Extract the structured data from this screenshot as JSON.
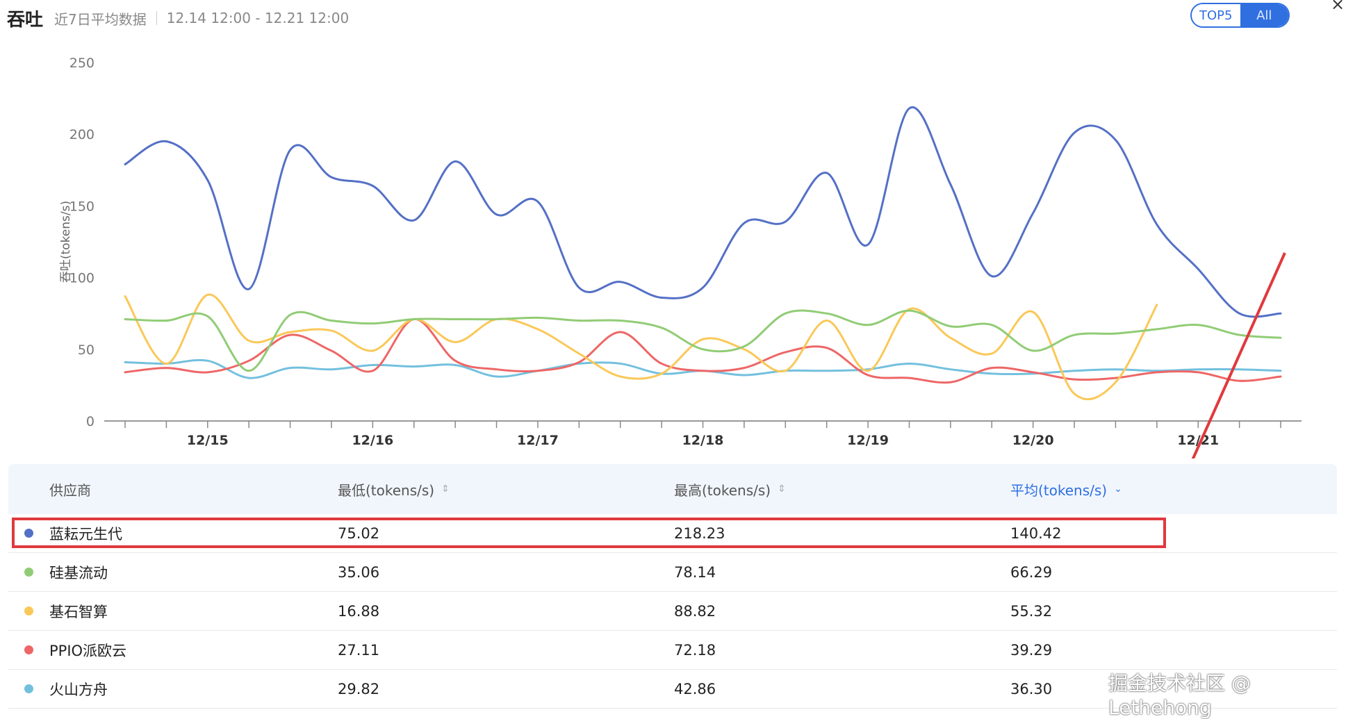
{
  "header": {
    "title": "吞吐",
    "subtitle": "近7日平均数据",
    "range": "12.14 12:00 - 12.21 12:00"
  },
  "toggle": {
    "top5": "TOP5",
    "all": "All"
  },
  "close_icon": "close-icon",
  "chart_data": {
    "type": "line",
    "ylabel": "吞吐(tokens/s)",
    "ylim": [
      0,
      250
    ],
    "yticks": [
      "0",
      "50",
      "100",
      "150",
      "200",
      "250"
    ],
    "xticks": [
      "12/15",
      "12/16",
      "12/17",
      "12/18",
      "12/19",
      "12/20",
      "12/21"
    ],
    "xlim": [
      0,
      28
    ],
    "x_tick_positions": [
      2,
      6,
      10,
      14,
      18,
      22,
      26
    ],
    "series": [
      {
        "name": "蓝耘元生代",
        "color": "#5470c6",
        "points": [
          [
            0,
            179
          ],
          [
            1,
            195
          ],
          [
            2,
            168
          ],
          [
            3,
            92
          ],
          [
            4,
            189
          ],
          [
            5,
            170
          ],
          [
            6,
            164
          ],
          [
            7,
            140
          ],
          [
            8,
            181
          ],
          [
            9,
            144
          ],
          [
            10,
            153
          ],
          [
            11,
            93
          ],
          [
            12,
            97
          ],
          [
            13,
            86
          ],
          [
            14,
            93
          ],
          [
            15,
            138
          ],
          [
            16,
            139
          ],
          [
            17,
            173
          ],
          [
            18,
            123
          ],
          [
            19,
            218
          ],
          [
            20,
            165
          ],
          [
            21,
            101
          ],
          [
            22,
            145
          ],
          [
            23,
            201
          ],
          [
            24,
            196
          ],
          [
            25,
            137
          ],
          [
            26,
            106
          ],
          [
            27,
            75
          ],
          [
            28,
            75
          ]
        ]
      },
      {
        "name": "硅基流动",
        "color": "#91cc75",
        "points": [
          [
            0,
            71
          ],
          [
            1,
            70
          ],
          [
            2,
            73
          ],
          [
            3,
            35
          ],
          [
            4,
            74
          ],
          [
            5,
            70
          ],
          [
            6,
            68
          ],
          [
            7,
            71
          ],
          [
            8,
            71
          ],
          [
            9,
            71
          ],
          [
            10,
            72
          ],
          [
            11,
            70
          ],
          [
            12,
            70
          ],
          [
            13,
            65
          ],
          [
            14,
            50
          ],
          [
            15,
            52
          ],
          [
            16,
            75
          ],
          [
            17,
            75
          ],
          [
            18,
            67
          ],
          [
            19,
            77
          ],
          [
            20,
            66
          ],
          [
            21,
            67
          ],
          [
            22,
            49
          ],
          [
            23,
            60
          ],
          [
            24,
            61
          ],
          [
            25,
            64
          ],
          [
            26,
            67
          ],
          [
            27,
            60
          ],
          [
            28,
            58
          ]
        ]
      },
      {
        "name": "基石智算",
        "color": "#fac858",
        "points": [
          [
            0,
            87
          ],
          [
            1,
            40
          ],
          [
            2,
            88
          ],
          [
            3,
            56
          ],
          [
            4,
            62
          ],
          [
            5,
            63
          ],
          [
            6,
            49
          ],
          [
            7,
            71
          ],
          [
            8,
            55
          ],
          [
            9,
            71
          ],
          [
            10,
            64
          ],
          [
            11,
            47
          ],
          [
            12,
            31
          ],
          [
            13,
            33
          ],
          [
            14,
            57
          ],
          [
            15,
            50
          ],
          [
            16,
            35
          ],
          [
            17,
            70
          ],
          [
            18,
            35
          ],
          [
            19,
            78
          ],
          [
            20,
            58
          ],
          [
            21,
            47
          ],
          [
            22,
            76
          ],
          [
            23,
            19
          ],
          [
            24,
            27
          ],
          [
            25,
            81
          ]
        ]
      },
      {
        "name": "PPIO派欧云",
        "color": "#ee6666",
        "points": [
          [
            0,
            34
          ],
          [
            1,
            37
          ],
          [
            2,
            34
          ],
          [
            3,
            42
          ],
          [
            4,
            60
          ],
          [
            5,
            49
          ],
          [
            6,
            35
          ],
          [
            7,
            71
          ],
          [
            8,
            42
          ],
          [
            9,
            36
          ],
          [
            10,
            35
          ],
          [
            11,
            41
          ],
          [
            12,
            62
          ],
          [
            13,
            40
          ],
          [
            14,
            35
          ],
          [
            15,
            37
          ],
          [
            16,
            48
          ],
          [
            17,
            51
          ],
          [
            18,
            32
          ],
          [
            19,
            30
          ],
          [
            20,
            27
          ],
          [
            21,
            37
          ],
          [
            22,
            34
          ],
          [
            23,
            29
          ],
          [
            24,
            30
          ],
          [
            25,
            34
          ],
          [
            26,
            34
          ],
          [
            27,
            28
          ],
          [
            28,
            31
          ]
        ]
      },
      {
        "name": "火山方舟",
        "color": "#73c0de",
        "points": [
          [
            0,
            41
          ],
          [
            1,
            40
          ],
          [
            2,
            42
          ],
          [
            3,
            30
          ],
          [
            4,
            37
          ],
          [
            5,
            36
          ],
          [
            6,
            39
          ],
          [
            7,
            38
          ],
          [
            8,
            39
          ],
          [
            9,
            31
          ],
          [
            10,
            35
          ],
          [
            11,
            40
          ],
          [
            12,
            40
          ],
          [
            13,
            33
          ],
          [
            14,
            35
          ],
          [
            15,
            32
          ],
          [
            16,
            35
          ],
          [
            17,
            35
          ],
          [
            18,
            36
          ],
          [
            19,
            40
          ],
          [
            20,
            36
          ],
          [
            21,
            33
          ],
          [
            22,
            33
          ],
          [
            23,
            35
          ],
          [
            24,
            36
          ],
          [
            25,
            35
          ],
          [
            26,
            36
          ],
          [
            27,
            36
          ],
          [
            28,
            35
          ]
        ]
      }
    ]
  },
  "table": {
    "headers": {
      "provider": "供应商",
      "min": "最低(tokens/s)",
      "max": "最高(tokens/s)",
      "avg": "平均(tokens/s)"
    },
    "rows": [
      {
        "name": "蓝耘元生代",
        "min": "75.02",
        "max": "218.23",
        "avg": "140.42",
        "color": "#5470c6"
      },
      {
        "name": "硅基流动",
        "min": "35.06",
        "max": "78.14",
        "avg": "66.29",
        "color": "#91cc75"
      },
      {
        "name": "基石智算",
        "min": "16.88",
        "max": "88.82",
        "avg": "55.32",
        "color": "#fac858"
      },
      {
        "name": "PPIO派欧云",
        "min": "27.11",
        "max": "72.18",
        "avg": "39.29",
        "color": "#ee6666"
      },
      {
        "name": "火山方舟",
        "min": "29.82",
        "max": "42.86",
        "avg": "36.30",
        "color": "#73c0de"
      }
    ]
  },
  "watermark": "掘金技术社区 @ Lethehong"
}
